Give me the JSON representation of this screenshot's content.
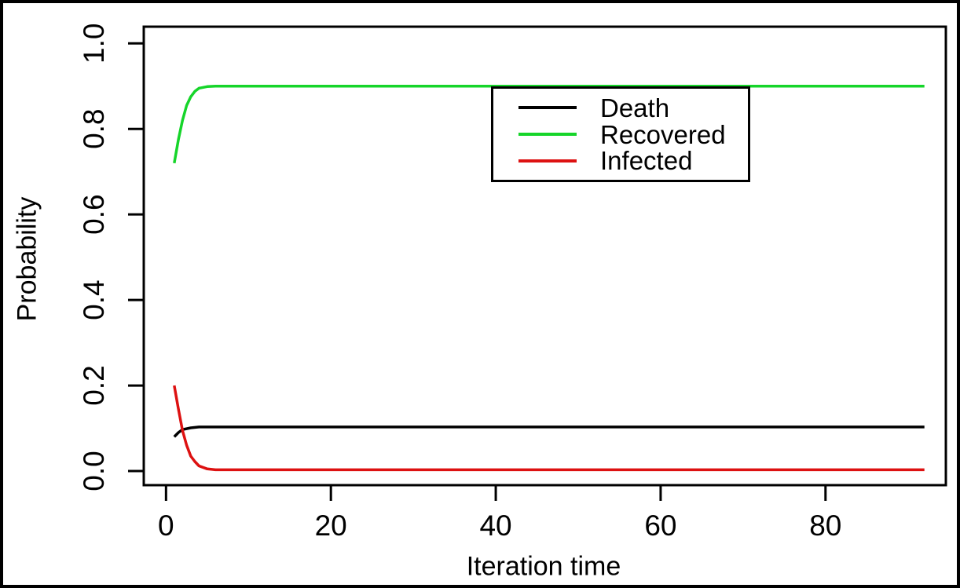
{
  "figure": {
    "background_color": "#ffffff",
    "frame_color": "#000000",
    "axis_color": "#000000",
    "text_color": "#000000"
  },
  "chart_data": {
    "type": "line",
    "title": "",
    "xlabel": "Iteration time",
    "ylabel": "Probability",
    "grid": false,
    "xlim": [
      -2.7,
      94.6
    ],
    "ylim": [
      -0.033,
      1.039
    ],
    "x_ticks": [
      0,
      20,
      40,
      60,
      80
    ],
    "x_tick_labels": [
      "0",
      "20",
      "40",
      "60",
      "80"
    ],
    "y_ticks": [
      0.0,
      0.2,
      0.4,
      0.6,
      0.8,
      1.0
    ],
    "y_tick_labels": [
      "0.0",
      "0.2",
      "0.4",
      "0.6",
      "0.8",
      "1.0"
    ],
    "legend": {
      "position": "top-center",
      "border": true
    },
    "series": [
      {
        "name": "Death",
        "color": "#000000",
        "points": [
          [
            1,
            0.08
          ],
          [
            1.5,
            0.09
          ],
          [
            2,
            0.097
          ],
          [
            3,
            0.101
          ],
          [
            4,
            0.103
          ],
          [
            6,
            0.103
          ],
          [
            92,
            0.103
          ]
        ]
      },
      {
        "name": "Recovered",
        "color": "#16d52a",
        "points": [
          [
            1,
            0.72
          ],
          [
            1.5,
            0.775
          ],
          [
            2,
            0.82
          ],
          [
            2.5,
            0.855
          ],
          [
            3,
            0.875
          ],
          [
            3.5,
            0.888
          ],
          [
            4,
            0.895
          ],
          [
            5,
            0.899
          ],
          [
            6,
            0.9
          ],
          [
            92,
            0.9
          ]
        ]
      },
      {
        "name": "Infected",
        "color": "#dd1111",
        "points": [
          [
            1,
            0.2
          ],
          [
            1.5,
            0.145
          ],
          [
            2,
            0.095
          ],
          [
            2.5,
            0.06
          ],
          [
            3,
            0.035
          ],
          [
            3.5,
            0.022
          ],
          [
            4,
            0.012
          ],
          [
            5,
            0.005
          ],
          [
            6,
            0.003
          ],
          [
            92,
            0.003
          ]
        ]
      }
    ]
  }
}
